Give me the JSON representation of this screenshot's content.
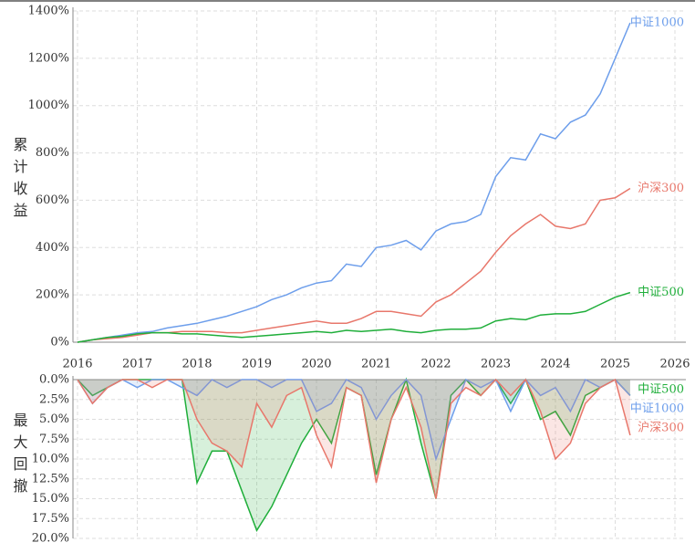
{
  "chart_data": [
    {
      "type": "line",
      "y_label": "累计收益",
      "xlim": [
        2016,
        2026
      ],
      "xticks": [
        2016,
        2017,
        2018,
        2019,
        2020,
        2021,
        2022,
        2023,
        2024,
        2025,
        2026
      ],
      "ylim": [
        0,
        1400
      ],
      "yticks": [
        {
          "value": 0,
          "label": "0%"
        },
        {
          "value": 200,
          "label": "200%"
        },
        {
          "value": 400,
          "label": "400%"
        },
        {
          "value": 600,
          "label": "600%"
        },
        {
          "value": 800,
          "label": "800%"
        },
        {
          "value": 1000,
          "label": "1000%"
        },
        {
          "value": 1200,
          "label": "1200%"
        },
        {
          "value": 1400,
          "label": "1400%"
        }
      ],
      "grid": true,
      "x": [
        2016,
        2016.25,
        2016.5,
        2016.75,
        2017,
        2017.25,
        2017.5,
        2017.75,
        2018,
        2018.25,
        2018.5,
        2018.75,
        2019,
        2019.25,
        2019.5,
        2019.75,
        2020,
        2020.25,
        2020.5,
        2020.75,
        2021,
        2021.25,
        2021.5,
        2021.75,
        2022,
        2022.25,
        2022.5,
        2022.75,
        2023,
        2023.25,
        2023.5,
        2023.75,
        2024,
        2024.25,
        2024.5,
        2024.75,
        2025,
        2025.25
      ],
      "series": [
        {
          "name": "中证1000",
          "color": "#6d9eeb",
          "values": [
            0,
            10,
            20,
            30,
            40,
            45,
            60,
            70,
            80,
            95,
            110,
            130,
            150,
            180,
            200,
            230,
            250,
            260,
            330,
            320,
            400,
            410,
            430,
            390,
            470,
            500,
            510,
            540,
            700,
            780,
            770,
            880,
            860,
            930,
            960,
            1050,
            1200,
            1350
          ]
        },
        {
          "name": "沪深300",
          "color": "#e8776b",
          "values": [
            0,
            10,
            15,
            20,
            30,
            40,
            40,
            45,
            45,
            45,
            40,
            40,
            50,
            60,
            70,
            80,
            90,
            80,
            80,
            100,
            130,
            130,
            120,
            110,
            170,
            200,
            250,
            300,
            380,
            450,
            500,
            540,
            490,
            480,
            500,
            600,
            610,
            650
          ]
        },
        {
          "name": "中证500",
          "color": "#1fae3a",
          "values": [
            0,
            10,
            20,
            25,
            35,
            40,
            40,
            35,
            35,
            30,
            25,
            20,
            25,
            30,
            35,
            40,
            45,
            40,
            50,
            45,
            50,
            55,
            45,
            40,
            50,
            55,
            55,
            60,
            90,
            100,
            95,
            115,
            120,
            120,
            130,
            160,
            190,
            210
          ]
        }
      ]
    },
    {
      "type": "area",
      "y_label": "最大回撤",
      "xlim": [
        2016,
        2026
      ],
      "ylim": [
        0,
        20
      ],
      "yticks": [
        {
          "value": 0,
          "label": "0.0%"
        },
        {
          "value": 2.5,
          "label": "2.5%"
        },
        {
          "value": 5,
          "label": "5.0%"
        },
        {
          "value": 7.5,
          "label": "7.5%"
        },
        {
          "value": 10,
          "label": "10.0%"
        },
        {
          "value": 12.5,
          "label": "12.5%"
        },
        {
          "value": 15,
          "label": "15.0%"
        },
        {
          "value": 17.5,
          "label": "17.5%"
        },
        {
          "value": 20,
          "label": "20.0%"
        }
      ],
      "grid": true,
      "x": [
        2016,
        2016.25,
        2016.5,
        2016.75,
        2017,
        2017.25,
        2017.5,
        2017.75,
        2018,
        2018.25,
        2018.5,
        2018.75,
        2019,
        2019.25,
        2019.5,
        2019.75,
        2020,
        2020.25,
        2020.5,
        2020.75,
        2021,
        2021.25,
        2021.5,
        2021.75,
        2022,
        2022.25,
        2022.5,
        2022.75,
        2023,
        2023.25,
        2023.5,
        2023.75,
        2024,
        2024.25,
        2024.5,
        2024.75,
        2025,
        2025.25
      ],
      "series": [
        {
          "name": "中证500",
          "color": "#1fae3a",
          "values": [
            0,
            2,
            1,
            0,
            0,
            0,
            0,
            0,
            13,
            9,
            9,
            14,
            19,
            16,
            12,
            8,
            5,
            8,
            1,
            2,
            12,
            5,
            0,
            8,
            15,
            2,
            0,
            2,
            0,
            3,
            0,
            5,
            4,
            7,
            2,
            1,
            0,
            2
          ]
        },
        {
          "name": "中证1000",
          "color": "#6d9eeb",
          "values": [
            0,
            3,
            1,
            0,
            1,
            0,
            0,
            1,
            2,
            0,
            1,
            0,
            0,
            1,
            0,
            0,
            4,
            3,
            0,
            1,
            5,
            2,
            0,
            2,
            10,
            5,
            0,
            1,
            0,
            4,
            0,
            2,
            1,
            4,
            0,
            1,
            0,
            2
          ]
        },
        {
          "name": "沪深300",
          "color": "#e8776b",
          "values": [
            0,
            3,
            1,
            0,
            0,
            1,
            0,
            0,
            5,
            8,
            9,
            11,
            3,
            6,
            2,
            1,
            7,
            11,
            1,
            2,
            13,
            5,
            1,
            6,
            15,
            3,
            1,
            2,
            0,
            2,
            0,
            4,
            10,
            8,
            3,
            1,
            0,
            7
          ]
        }
      ]
    }
  ]
}
